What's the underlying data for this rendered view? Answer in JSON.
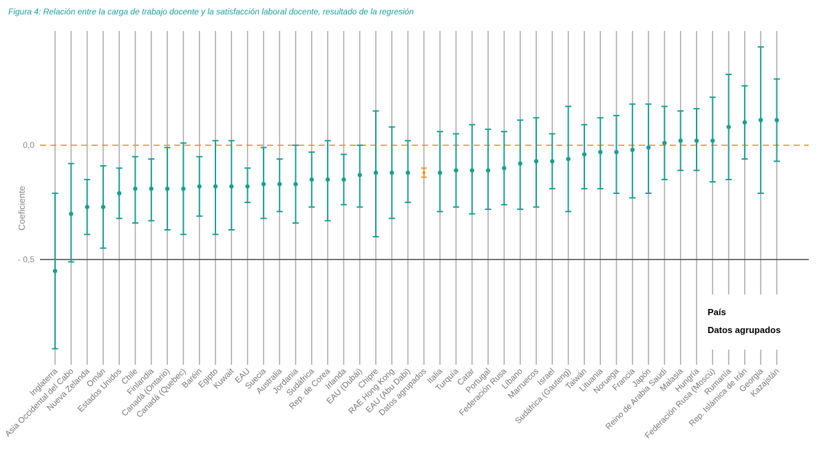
{
  "chart_data": {
    "type": "errorbar",
    "title": "Figura 4: Relación entre la carga de trabajo docente y la satisfacción laboral docente, resultado de la regresión",
    "ylabel": "Coeficiente",
    "ylim": [
      -0.96,
      0.5
    ],
    "yticks": [
      {
        "value": 0.0,
        "label": "0,0"
      },
      {
        "value": -0.5,
        "label": "- 0,5"
      }
    ],
    "reference_line": {
      "value": 0.0,
      "style": "dashed"
    },
    "colors": {
      "pais": "#1a9e94",
      "agrupados": "#e8962a",
      "grid": "#a8a8a8",
      "axis": "#555555"
    },
    "legend": [
      {
        "label": "País",
        "color": "#1a9e94"
      },
      {
        "label": "Datos agrupados",
        "color": "#e8962a"
      }
    ],
    "points": [
      {
        "label": "Inglaterra",
        "est": -0.55,
        "low": -0.89,
        "high": -0.21,
        "group": "pais"
      },
      {
        "label": "Asia Occidental del Cabo",
        "est": -0.3,
        "low": -0.51,
        "high": -0.08,
        "group": "pais"
      },
      {
        "label": "Nueva Zelanda",
        "est": -0.27,
        "low": -0.39,
        "high": -0.15,
        "group": "pais"
      },
      {
        "label": "Omán",
        "est": -0.27,
        "low": -0.45,
        "high": -0.09,
        "group": "pais"
      },
      {
        "label": "Estados Unidos",
        "est": -0.21,
        "low": -0.32,
        "high": -0.1,
        "group": "pais"
      },
      {
        "label": "Chile",
        "est": -0.19,
        "low": -0.34,
        "high": -0.05,
        "group": "pais"
      },
      {
        "label": "Finlandia",
        "est": -0.19,
        "low": -0.33,
        "high": -0.06,
        "group": "pais"
      },
      {
        "label": "Canadá (Ontario)",
        "est": -0.19,
        "low": -0.37,
        "high": -0.01,
        "group": "pais"
      },
      {
        "label": "Canadá (Quebec)",
        "est": -0.19,
        "low": -0.39,
        "high": 0.01,
        "group": "pais"
      },
      {
        "label": "Baréin",
        "est": -0.18,
        "low": -0.31,
        "high": -0.05,
        "group": "pais"
      },
      {
        "label": "Egipto",
        "est": -0.18,
        "low": -0.39,
        "high": 0.02,
        "group": "pais"
      },
      {
        "label": "Kuwait",
        "est": -0.18,
        "low": -0.37,
        "high": 0.02,
        "group": "pais"
      },
      {
        "label": "EAU",
        "est": -0.18,
        "low": -0.25,
        "high": -0.1,
        "group": "pais"
      },
      {
        "label": "Suecia",
        "est": -0.17,
        "low": -0.32,
        "high": -0.01,
        "group": "pais"
      },
      {
        "label": "Australia",
        "est": -0.17,
        "low": -0.29,
        "high": -0.06,
        "group": "pais"
      },
      {
        "label": "Jordania",
        "est": -0.17,
        "low": -0.34,
        "high": 0.0,
        "group": "pais"
      },
      {
        "label": "Sudáfrica",
        "est": -0.15,
        "low": -0.27,
        "high": -0.03,
        "group": "pais"
      },
      {
        "label": "Rep. de Corea",
        "est": -0.15,
        "low": -0.33,
        "high": 0.02,
        "group": "pais"
      },
      {
        "label": "Irlanda",
        "est": -0.15,
        "low": -0.26,
        "high": -0.04,
        "group": "pais"
      },
      {
        "label": "EAU (Dubái)",
        "est": -0.13,
        "low": -0.27,
        "high": 0.0,
        "group": "pais"
      },
      {
        "label": "Chipre",
        "est": -0.12,
        "low": -0.4,
        "high": 0.15,
        "group": "pais"
      },
      {
        "label": "RAE Hong Kong",
        "est": -0.12,
        "low": -0.32,
        "high": 0.08,
        "group": "pais"
      },
      {
        "label": "EAU (Abu Dabi)",
        "est": -0.12,
        "low": -0.25,
        "high": 0.02,
        "group": "pais"
      },
      {
        "label": "Datos agrupados",
        "est": -0.12,
        "low": -0.14,
        "high": -0.1,
        "group": "agrupados"
      },
      {
        "label": "Italia",
        "est": -0.12,
        "low": -0.29,
        "high": 0.06,
        "group": "pais"
      },
      {
        "label": "Turquía",
        "est": -0.11,
        "low": -0.27,
        "high": 0.05,
        "group": "pais"
      },
      {
        "label": "Catar",
        "est": -0.11,
        "low": -0.3,
        "high": 0.09,
        "group": "pais"
      },
      {
        "label": "Portugal",
        "est": -0.11,
        "low": -0.28,
        "high": 0.07,
        "group": "pais"
      },
      {
        "label": "Federación Rusa",
        "est": -0.1,
        "low": -0.26,
        "high": 0.06,
        "group": "pais"
      },
      {
        "label": "Líbano",
        "est": -0.08,
        "low": -0.28,
        "high": 0.11,
        "group": "pais"
      },
      {
        "label": "Marruecos",
        "est": -0.07,
        "low": -0.27,
        "high": 0.12,
        "group": "pais"
      },
      {
        "label": "Israel",
        "est": -0.07,
        "low": -0.19,
        "high": 0.05,
        "group": "pais"
      },
      {
        "label": "Sudáfrica (Gauteng)",
        "est": -0.06,
        "low": -0.29,
        "high": 0.17,
        "group": "pais"
      },
      {
        "label": "Taiwán",
        "est": -0.04,
        "low": -0.19,
        "high": 0.09,
        "group": "pais"
      },
      {
        "label": "Lituania",
        "est": -0.03,
        "low": -0.19,
        "high": 0.12,
        "group": "pais"
      },
      {
        "label": "Noruega",
        "est": -0.03,
        "low": -0.21,
        "high": 0.13,
        "group": "pais"
      },
      {
        "label": "Francia",
        "est": -0.02,
        "low": -0.23,
        "high": 0.18,
        "group": "pais"
      },
      {
        "label": "Japón",
        "est": -0.01,
        "low": -0.21,
        "high": 0.18,
        "group": "pais"
      },
      {
        "label": "Reino de Arabia Saudí",
        "est": 0.01,
        "low": -0.15,
        "high": 0.17,
        "group": "pais"
      },
      {
        "label": "Malasia",
        "est": 0.02,
        "low": -0.11,
        "high": 0.15,
        "group": "pais"
      },
      {
        "label": "Hungría",
        "est": 0.02,
        "low": -0.11,
        "high": 0.16,
        "group": "pais"
      },
      {
        "label": "Federación Rusa (Moscú)",
        "est": 0.02,
        "low": -0.16,
        "high": 0.21,
        "group": "pais"
      },
      {
        "label": "Rumanía",
        "est": 0.08,
        "low": -0.15,
        "high": 0.31,
        "group": "pais"
      },
      {
        "label": "Rep. Islámica de Irán",
        "est": 0.1,
        "low": -0.06,
        "high": 0.26,
        "group": "pais"
      },
      {
        "label": "Georgia",
        "est": 0.11,
        "low": -0.21,
        "high": 0.43,
        "group": "pais"
      },
      {
        "label": "Kazajstán",
        "est": 0.11,
        "low": -0.07,
        "high": 0.29,
        "group": "pais"
      }
    ]
  }
}
